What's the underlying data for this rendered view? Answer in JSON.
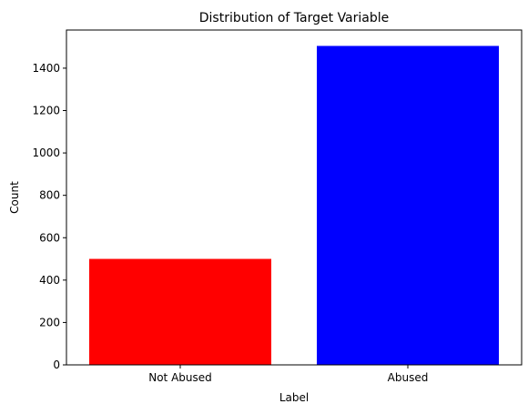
{
  "chart_data": {
    "type": "bar",
    "title": "Distribution of Target Variable",
    "xlabel": "Label",
    "ylabel": "Count",
    "categories": [
      "Not Abused",
      "Abused"
    ],
    "values": [
      500,
      1505
    ],
    "colors": [
      "#ff0000",
      "#0000ff"
    ],
    "ylim": [
      0,
      1580
    ],
    "yticks": [
      0,
      200,
      400,
      600,
      800,
      1000,
      1200,
      1400
    ],
    "grid": false,
    "legend": "none"
  }
}
